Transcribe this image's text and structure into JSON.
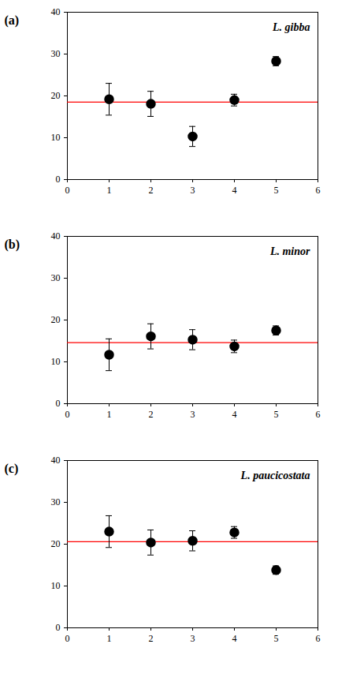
{
  "chart_data": [
    {
      "type": "scatter",
      "panel_label": "(a)",
      "title": "L. gibba",
      "x": [
        1,
        2,
        3,
        4,
        5
      ],
      "values": [
        19.2,
        18.1,
        10.3,
        19.0,
        28.3
      ],
      "errors": [
        3.8,
        3.0,
        2.4,
        1.4,
        1.1
      ],
      "color": "#000000",
      "marker": "circle",
      "reference_line": {
        "value": 18.5,
        "color": "#ff0000"
      },
      "xlim": [
        0,
        6
      ],
      "xticks": [
        0,
        1,
        2,
        3,
        4,
        5,
        6
      ],
      "ylim": [
        0,
        40
      ],
      "yticks": [
        0,
        10,
        20,
        30,
        40
      ]
    },
    {
      "type": "scatter",
      "panel_label": "(b)",
      "title": "L. minor",
      "x": [
        1,
        2,
        3,
        4,
        5
      ],
      "values": [
        11.7,
        16.1,
        15.3,
        13.7,
        17.5
      ],
      "errors": [
        3.8,
        3.0,
        2.4,
        1.5,
        1.1
      ],
      "color": "#000000",
      "marker": "circle",
      "reference_line": {
        "value": 14.6,
        "color": "#ff0000"
      },
      "xlim": [
        0,
        6
      ],
      "xticks": [
        0,
        1,
        2,
        3,
        4,
        5,
        6
      ],
      "ylim": [
        0,
        40
      ],
      "yticks": [
        0,
        10,
        20,
        30,
        40
      ]
    },
    {
      "type": "scatter",
      "panel_label": "(c)",
      "title": "L. paucicostata",
      "x": [
        1,
        2,
        3,
        4,
        5
      ],
      "values": [
        23.0,
        20.4,
        20.8,
        22.8,
        13.8
      ],
      "errors": [
        3.8,
        3.0,
        2.4,
        1.4,
        1.0
      ],
      "color": "#000000",
      "marker": "circle",
      "reference_line": {
        "value": 20.6,
        "color": "#ff0000"
      },
      "xlim": [
        0,
        6
      ],
      "xticks": [
        0,
        1,
        2,
        3,
        4,
        5,
        6
      ],
      "ylim": [
        0,
        40
      ],
      "yticks": [
        0,
        10,
        20,
        30,
        40
      ]
    }
  ]
}
